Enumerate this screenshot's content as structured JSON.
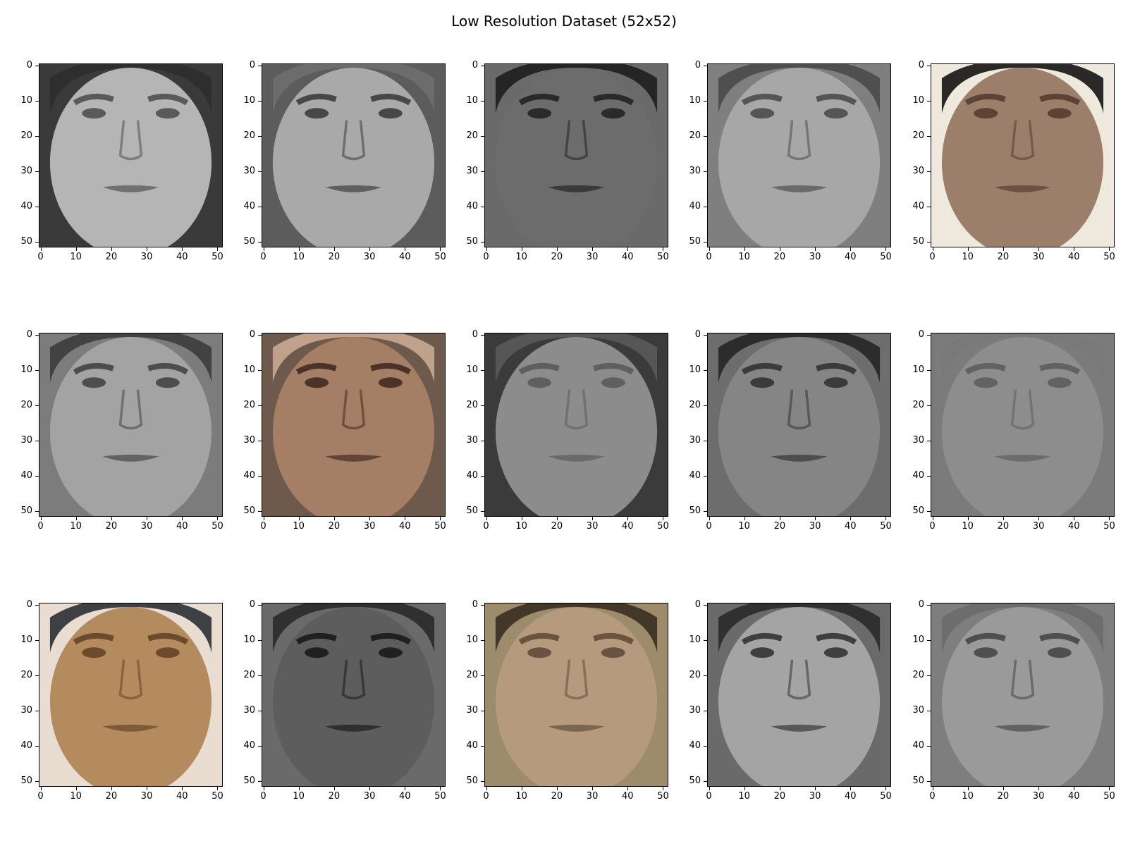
{
  "title": "Low Resolution Dataset (52x52)",
  "axis": {
    "x_ticks": [
      "0",
      "10",
      "20",
      "30",
      "40",
      "50"
    ],
    "y_ticks": [
      "0",
      "10",
      "20",
      "30",
      "40",
      "50"
    ]
  },
  "faces": [
    {
      "skin": "#b5b5b5",
      "hair": "#2e2e2e",
      "bg": "#3a3a3a",
      "features": "#5a5a5a"
    },
    {
      "skin": "#a9a9a9",
      "hair": "#6e6e6e",
      "bg": "#5c5c5c",
      "features": "#474747"
    },
    {
      "skin": "#6c6c6c",
      "hair": "#1e1e1e",
      "bg": "#6a6a6a",
      "features": "#2a2a2a"
    },
    {
      "skin": "#a7a7a7",
      "hair": "#4a4a4a",
      "bg": "#7f7f7f",
      "features": "#555555"
    },
    {
      "skin": "#9c7f6a",
      "hair": "#141414",
      "bg": "#eee9dc",
      "features": "#5b4336"
    },
    {
      "skin": "#a3a3a3",
      "hair": "#3c3c3c",
      "bg": "#7c7c7c",
      "features": "#4d4d4d"
    },
    {
      "skin": "#a57e66",
      "hair": "#c9a892",
      "bg": "#6d5a4c",
      "features": "#4b3327"
    },
    {
      "skin": "#8c8c8c",
      "hair": "#5a5a5a",
      "bg": "#3b3b3b",
      "features": "#5f5f5f"
    },
    {
      "skin": "#858585",
      "hair": "#252525",
      "bg": "#6d6d6d",
      "features": "#3b3b3b"
    },
    {
      "skin": "#8d8d8d",
      "hair": "#797979",
      "bg": "#7b7b7b",
      "features": "#626262"
    },
    {
      "skin": "#b48a5f",
      "hair": "#2c2f33",
      "bg": "#e9ddd2",
      "features": "#6d4a2c"
    },
    {
      "skin": "#5d5d5d",
      "hair": "#2a2a2a",
      "bg": "#6a6a6a",
      "features": "#202020"
    },
    {
      "skin": "#b59a7d",
      "hair": "#3a2e24",
      "bg": "#9c8c6c",
      "features": "#6a5340"
    },
    {
      "skin": "#a4a4a4",
      "hair": "#2a2a2a",
      "bg": "#6a6a6a",
      "features": "#3f3f3f"
    },
    {
      "skin": "#9a9a9a",
      "hair": "#6c6c6c",
      "bg": "#7e7e7e",
      "features": "#4f4f4f"
    }
  ]
}
